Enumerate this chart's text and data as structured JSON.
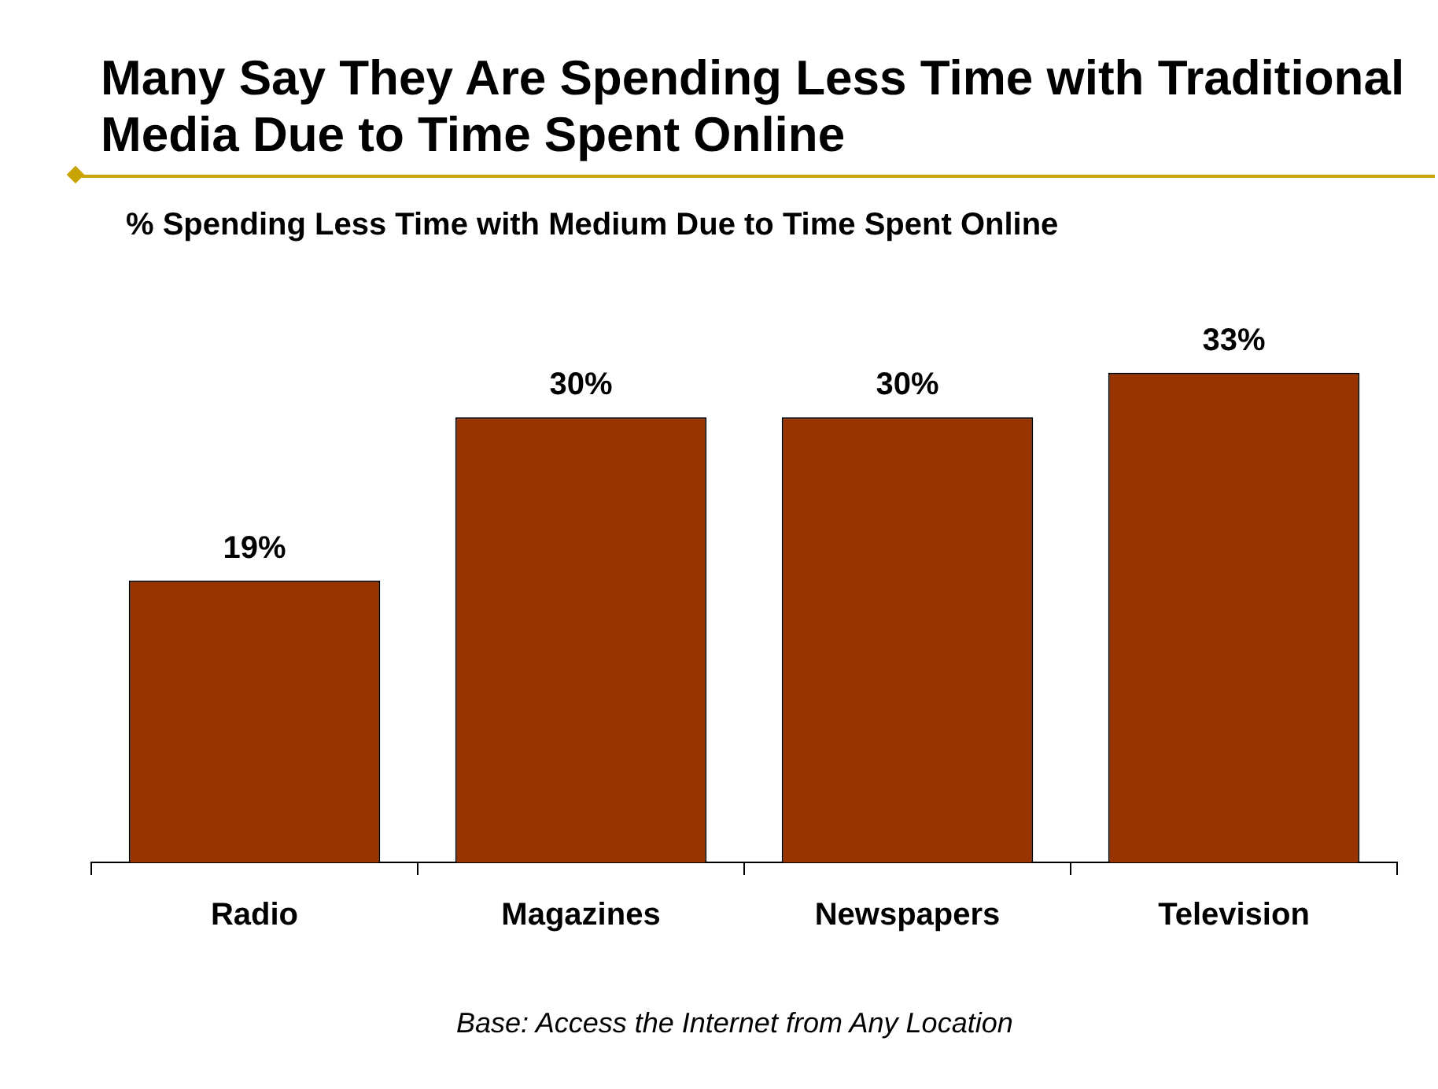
{
  "chart_data": {
    "type": "bar",
    "title": "Many Say They Are Spending Less Time with Traditional Media Due to Time Spent Online",
    "subtitle": "% Spending Less Time with Medium Due to Time Spent Online",
    "categories": [
      "Radio",
      "Magazines",
      "Newspapers",
      "Television"
    ],
    "values": [
      19,
      30,
      30,
      33
    ],
    "value_labels": [
      "19%",
      "30%",
      "30%",
      "33%"
    ],
    "color": "#993300",
    "grid": false,
    "legend": false,
    "annotations": [
      "Base:  Access the Internet from Any Location"
    ]
  }
}
